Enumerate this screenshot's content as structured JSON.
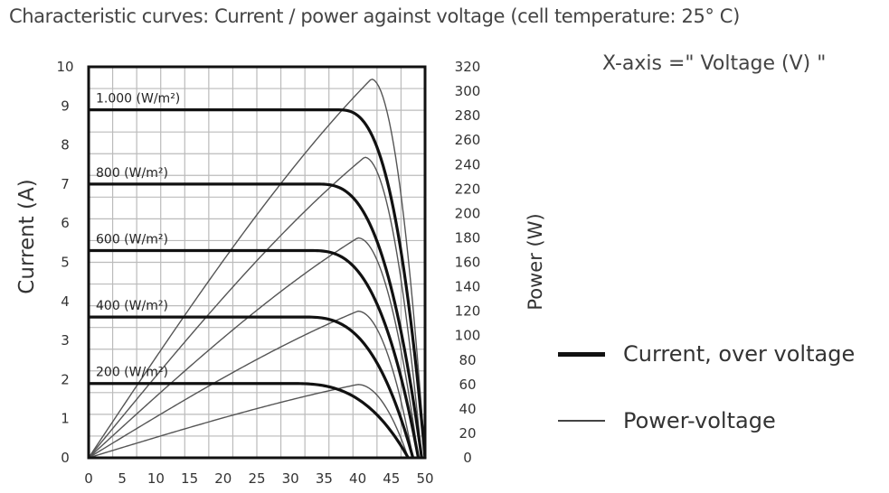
{
  "chart_data": {
    "type": "line",
    "title": "Characteristic curves: Current / power against voltage (cell temperature: 25° C)",
    "axis_note": "X-axis =\" Voltage (V) \"",
    "xlabel": "",
    "ylabel_left": "Current (A)",
    "ylabel_right": "Power (W)",
    "xlim": [
      0,
      50
    ],
    "ylim_left": [
      0,
      10
    ],
    "ylim_right": [
      0,
      320
    ],
    "x_ticks": [
      "0",
      "5",
      "10",
      "15",
      "20",
      "25",
      "30",
      "35",
      "40",
      "45",
      "50"
    ],
    "y_left_ticks": [
      "0",
      "1",
      "2",
      "3",
      "4",
      "5",
      "6",
      "7",
      "8",
      "9",
      "10"
    ],
    "y_right_ticks": [
      "0",
      "20",
      "40",
      "60",
      "80",
      "100",
      "120",
      "140",
      "160",
      "180",
      "200",
      "220",
      "240",
      "260",
      "280",
      "300",
      "320"
    ],
    "grid": true,
    "legend": [
      {
        "label": "Current, over voltage",
        "style": "thick"
      },
      {
        "label": "Power-voltage",
        "style": "thin"
      }
    ],
    "series": [
      {
        "irradiance": "1.000 (W/m²)",
        "isc": 8.9,
        "voc": 50.0,
        "vknee": 37,
        "pmax": 310,
        "vmp": 42
      },
      {
        "irradiance": "800 (W/m²)",
        "isc": 7.0,
        "voc": 49.5,
        "vknee": 34,
        "pmax": 246,
        "vmp": 41
      },
      {
        "irradiance": "600 (W/m²)",
        "isc": 5.3,
        "voc": 49.0,
        "vknee": 33,
        "pmax": 180,
        "vmp": 40
      },
      {
        "irradiance": "400 (W/m²)",
        "isc": 3.6,
        "voc": 48.2,
        "vknee": 32,
        "pmax": 120,
        "vmp": 40
      },
      {
        "irradiance": "200 (W/m²)",
        "isc": 1.9,
        "voc": 47.5,
        "vknee": 30,
        "pmax": 60,
        "vmp": 40
      }
    ]
  },
  "colors": {
    "current_line": "#111111",
    "power_line": "#555555",
    "grid": "#bbbbbb",
    "frame": "#111111"
  }
}
